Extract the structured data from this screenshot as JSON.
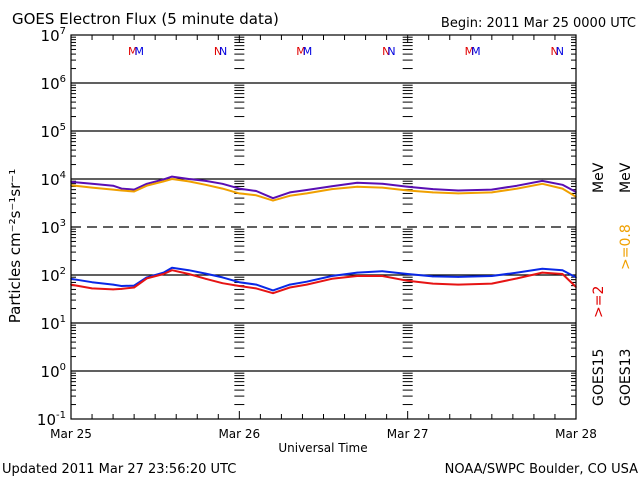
{
  "chart_data": {
    "type": "line",
    "title": "GOES Electron Flux (5 minute data)",
    "begin_label": "Begin: 2011 Mar 25 0000 UTC",
    "xlabel": "Universal Time",
    "ylabel": "Particles cm⁻²s⁻¹sr⁻¹",
    "yscale": "log",
    "ylim": [
      0.1,
      10000000
    ],
    "xlim_days": [
      0,
      3
    ],
    "x_tick_labels": [
      "Mar 25",
      "Mar 26",
      "Mar 27",
      "Mar 28"
    ],
    "y_tick_labels": [
      {
        "base": "10",
        "exp": "7",
        "log": 7
      },
      {
        "base": "10",
        "exp": "6",
        "log": 6
      },
      {
        "base": "10",
        "exp": "5",
        "log": 5
      },
      {
        "base": "10",
        "exp": "4",
        "log": 4
      },
      {
        "base": "10",
        "exp": "3",
        "log": 3
      },
      {
        "base": "10",
        "exp": "2",
        "log": 2
      },
      {
        "base": "10",
        "exp": "1",
        "log": 1
      },
      {
        "base": "10",
        "exp": "0",
        "log": 0
      },
      {
        "base": "10",
        "exp": "-1",
        "log": -1
      }
    ],
    "threshold_dashed_log": 3,
    "grid": true,
    "markers": [
      {
        "label": "MM",
        "day": 0.38,
        "colors": [
          "#e00000",
          "#0000e0"
        ]
      },
      {
        "label": "NN",
        "day": 0.89,
        "colors": [
          "#e00000",
          "#0000e0"
        ]
      },
      {
        "label": "MM",
        "day": 1.38,
        "colors": [
          "#e00000",
          "#0000e0"
        ]
      },
      {
        "label": "NN",
        "day": 1.89,
        "colors": [
          "#e00000",
          "#0000e0"
        ]
      },
      {
        "label": "MM",
        "day": 2.38,
        "colors": [
          "#e00000",
          "#0000e0"
        ]
      },
      {
        "label": "NN",
        "day": 2.89,
        "colors": [
          "#e00000",
          "#0000e0"
        ]
      }
    ],
    "legend": {
      "placement": "right",
      "energy_labels": [
        {
          "text": ">=2",
          "unit": "MeV",
          "color": "#e00000"
        },
        {
          "text": ">=0.8",
          "unit": "MeV",
          "color": "#f0a000"
        }
      ],
      "satellites": [
        "GOES15",
        "GOES13"
      ]
    },
    "x_days": [
      0,
      0.125,
      0.25,
      0.3,
      0.375,
      0.45,
      0.55,
      0.6,
      0.7,
      0.8,
      0.9,
      1.0,
      1.1,
      1.2,
      1.3,
      1.4,
      1.55,
      1.7,
      1.85,
      2.0,
      2.15,
      2.3,
      2.5,
      2.65,
      2.8,
      2.92,
      3.0
    ],
    "series": [
      {
        "name": "GOES15 >=0.8 MeV",
        "color": "#5a0fb4",
        "log_values": [
          3.94,
          3.9,
          3.86,
          3.8,
          3.78,
          3.9,
          3.99,
          4.05,
          4.0,
          3.96,
          3.9,
          3.8,
          3.75,
          3.6,
          3.72,
          3.77,
          3.85,
          3.92,
          3.9,
          3.84,
          3.79,
          3.76,
          3.78,
          3.86,
          3.96,
          3.88,
          3.73
        ]
      },
      {
        "name": "GOES13 >=0.8 MeV",
        "color": "#f0a000",
        "log_values": [
          3.87,
          3.82,
          3.78,
          3.76,
          3.74,
          3.86,
          3.95,
          4.0,
          3.95,
          3.88,
          3.8,
          3.7,
          3.66,
          3.55,
          3.65,
          3.7,
          3.79,
          3.84,
          3.82,
          3.76,
          3.72,
          3.7,
          3.72,
          3.8,
          3.9,
          3.8,
          3.63
        ]
      },
      {
        "name": "GOES15 >=2 MeV",
        "color": "#0a28e6",
        "log_values": [
          1.92,
          1.85,
          1.8,
          1.77,
          1.78,
          1.95,
          2.05,
          2.15,
          2.1,
          2.03,
          1.95,
          1.85,
          1.8,
          1.68,
          1.8,
          1.86,
          1.98,
          2.05,
          2.08,
          2.02,
          1.97,
          1.96,
          1.98,
          2.05,
          2.13,
          2.1,
          1.95
        ]
      },
      {
        "name": "GOES13 >=2 MeV",
        "color": "#e61414",
        "log_values": [
          1.8,
          1.72,
          1.7,
          1.71,
          1.74,
          1.93,
          2.02,
          2.1,
          2.02,
          1.92,
          1.83,
          1.77,
          1.72,
          1.62,
          1.74,
          1.8,
          1.92,
          1.98,
          1.98,
          1.88,
          1.82,
          1.8,
          1.82,
          1.93,
          2.05,
          2.02,
          1.75
        ]
      }
    ]
  },
  "footer": {
    "updated": "Updated 2011 Mar 27 23:56:20 UTC",
    "credit": "NOAA/SWPC Boulder, CO USA"
  }
}
